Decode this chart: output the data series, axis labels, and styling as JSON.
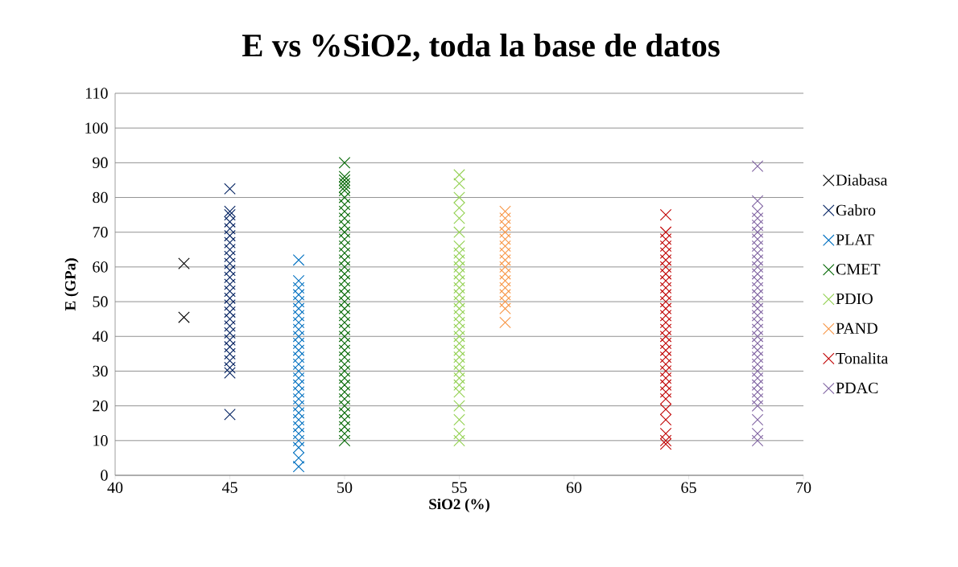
{
  "chart_data": {
    "type": "scatter",
    "title": "E vs %SiO2, toda la base de datos",
    "xlabel": "SiO2 (%)",
    "ylabel": "E (GPa)",
    "xlim": [
      40,
      70
    ],
    "xticks": [
      40,
      45,
      50,
      55,
      60,
      65,
      70
    ],
    "ylim": [
      0,
      110
    ],
    "yticks": [
      0,
      10,
      20,
      30,
      40,
      50,
      60,
      70,
      80,
      90,
      100,
      110
    ],
    "grid": "y",
    "legend": "right",
    "marker": "cross",
    "series": [
      {
        "name": "Diabasa",
        "color": "#000000",
        "x": [
          43,
          43
        ],
        "values": [
          61,
          45.5
        ]
      },
      {
        "name": "Gabro",
        "color": "#002060",
        "x": [
          45,
          45,
          45,
          45,
          45,
          45,
          45,
          45,
          45,
          45,
          45,
          45,
          45,
          45,
          45,
          45,
          45,
          45,
          45,
          45,
          45,
          45,
          45,
          45,
          45,
          45,
          45
        ],
        "values": [
          82.5,
          76,
          75,
          73,
          71,
          69,
          67,
          65,
          63,
          61,
          59,
          57,
          55,
          53,
          51,
          49,
          47,
          45,
          43,
          41,
          39,
          37,
          35,
          33,
          31,
          29.5,
          17.5
        ]
      },
      {
        "name": "PLAT",
        "color": "#0070c0",
        "x": [
          48,
          48,
          48,
          48,
          48,
          48,
          48,
          48,
          48,
          48,
          48,
          48,
          48,
          48,
          48,
          48,
          48,
          48,
          48,
          48,
          48,
          48,
          48,
          48,
          48,
          48,
          48,
          48
        ],
        "values": [
          62,
          56,
          54,
          52,
          50,
          48,
          46,
          44,
          42,
          40,
          38,
          36,
          34,
          32,
          30,
          28,
          26,
          24,
          22,
          20,
          18,
          16,
          14,
          12,
          10,
          8,
          5,
          2.5
        ]
      },
      {
        "name": "CMET",
        "color": "#006600",
        "x": [
          50,
          50,
          50,
          50,
          50,
          50,
          50,
          50,
          50,
          50,
          50,
          50,
          50,
          50,
          50,
          50,
          50,
          50,
          50,
          50,
          50,
          50,
          50,
          50,
          50,
          50,
          50,
          50,
          50,
          50,
          50,
          50,
          50,
          50,
          50,
          50,
          50,
          50,
          50,
          50,
          50,
          50
        ],
        "values": [
          90,
          86,
          84,
          82,
          80,
          78,
          76,
          74,
          72,
          70,
          68,
          66,
          64,
          62,
          60,
          58,
          56,
          54,
          52,
          50,
          48,
          46,
          44,
          42,
          40,
          38,
          36,
          34,
          32,
          30,
          28,
          26,
          24,
          22,
          20,
          18,
          16,
          14,
          12,
          10,
          85,
          83
        ]
      },
      {
        "name": "PDIO",
        "color": "#92d050",
        "x": [
          55,
          55,
          55,
          55,
          55,
          55,
          55,
          55,
          55,
          55,
          55,
          55,
          55,
          55,
          55,
          55,
          55,
          55,
          55,
          55,
          55,
          55,
          55,
          55,
          55,
          55,
          55,
          55,
          55,
          55,
          55,
          55
        ],
        "values": [
          86.5,
          84,
          80,
          77,
          74,
          70,
          66,
          64,
          62,
          60,
          58,
          56,
          54,
          52,
          50,
          48,
          46,
          44,
          42,
          40,
          38,
          36,
          34,
          32,
          30,
          28,
          26,
          24,
          20,
          16,
          12,
          10
        ]
      },
      {
        "name": "PAND",
        "color": "#f79646",
        "x": [
          57,
          57,
          57,
          57,
          57,
          57,
          57,
          57,
          57,
          57,
          57,
          57,
          57,
          57,
          57,
          57
        ],
        "values": [
          76,
          74,
          72,
          70,
          68,
          66,
          64,
          62,
          60,
          58,
          56,
          54,
          52,
          50,
          48,
          44
        ]
      },
      {
        "name": "Tonalita",
        "color": "#c00000",
        "x": [
          64,
          64,
          64,
          64,
          64,
          64,
          64,
          64,
          64,
          64,
          64,
          64,
          64,
          64,
          64,
          64,
          64,
          64,
          64,
          64,
          64,
          64,
          64,
          64,
          64,
          64,
          64,
          64,
          64,
          64,
          64
        ],
        "values": [
          75,
          70,
          68,
          66,
          64,
          62,
          60,
          58,
          56,
          54,
          52,
          50,
          48,
          46,
          44,
          42,
          40,
          38,
          36,
          34,
          32,
          30,
          28,
          26,
          24,
          22,
          19,
          16,
          12,
          10,
          9
        ]
      },
      {
        "name": "PDAC",
        "color": "#8064a2",
        "x": [
          68,
          68,
          68,
          68,
          68,
          68,
          68,
          68,
          68,
          68,
          68,
          68,
          68,
          68,
          68,
          68,
          68,
          68,
          68,
          68,
          68,
          68,
          68,
          68,
          68,
          68,
          68,
          68,
          68,
          68,
          68,
          68,
          68,
          68
        ],
        "values": [
          89,
          79,
          76,
          74,
          72,
          70,
          68,
          66,
          64,
          62,
          60,
          58,
          56,
          54,
          52,
          50,
          48,
          46,
          44,
          42,
          40,
          38,
          36,
          34,
          32,
          30,
          28,
          26,
          24,
          22,
          20,
          16,
          12,
          10
        ]
      }
    ]
  }
}
